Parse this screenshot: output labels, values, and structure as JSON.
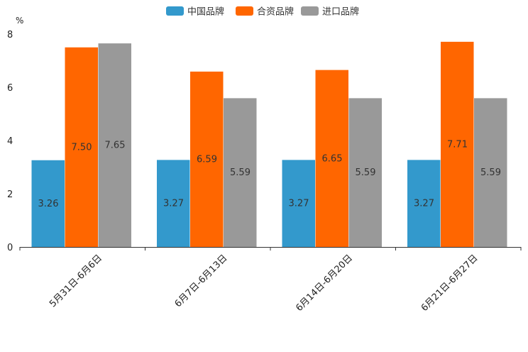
{
  "chart_data": {
    "type": "bar",
    "title": "",
    "xlabel": "",
    "ylabel": "%",
    "ylim": [
      0,
      8
    ],
    "yticks": [
      0,
      2,
      4,
      6,
      8
    ],
    "categories": [
      "5月31日-6月6日",
      "6月7日-6月13日",
      "6月14日-6月20日",
      "6月21日-6月27日"
    ],
    "series": [
      {
        "name": "中国品牌",
        "color": "#3399cc",
        "values": [
          3.26,
          3.27,
          3.27,
          3.27
        ],
        "labels": [
          "3.26",
          "3.27",
          "3.27",
          "3.27"
        ]
      },
      {
        "name": "合资品牌",
        "color": "#ff6600",
        "values": [
          7.5,
          6.59,
          6.65,
          7.71
        ],
        "labels": [
          "7.50",
          "6.59",
          "6.65",
          "7.71"
        ]
      },
      {
        "name": "进口品牌",
        "color": "#999999",
        "values": [
          7.65,
          5.59,
          5.59,
          5.59
        ],
        "labels": [
          "7.65",
          "5.59",
          "5.59",
          "5.59"
        ]
      }
    ],
    "legend_position": "top-center",
    "grid": false
  }
}
